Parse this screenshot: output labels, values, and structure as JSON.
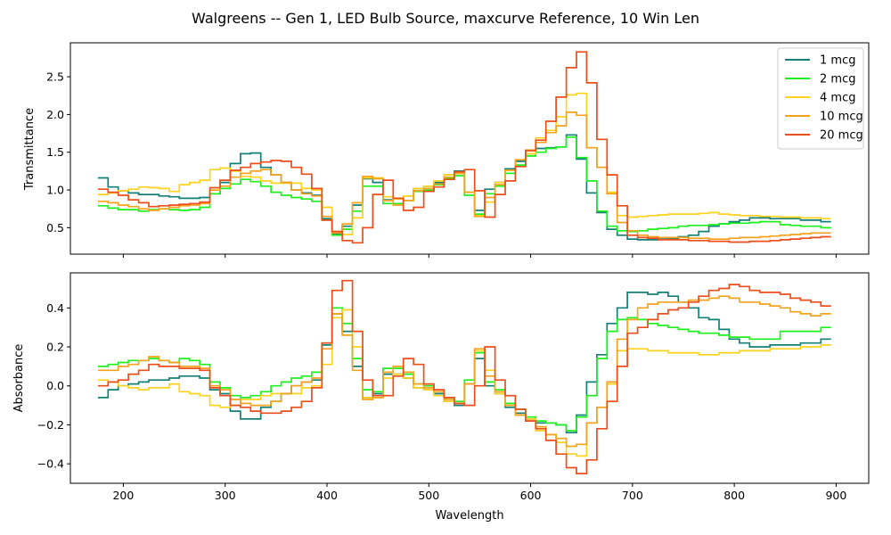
{
  "figure": {
    "title": "Walgreens -- Gen 1, LED Bulb Source, maxcurve Reference, 10 Win Len"
  },
  "chart_data": [
    {
      "type": "line",
      "step": true,
      "title": "",
      "xlabel": "",
      "ylabel": "Transmittance",
      "xlim": [
        148,
        932
      ],
      "ylim": [
        0.15,
        2.95
      ],
      "xticks": [
        200,
        300,
        400,
        500,
        600,
        700,
        800,
        900
      ],
      "xtick_labels_visible": false,
      "yticks": [
        0.5,
        1.0,
        1.5,
        2.0,
        2.5
      ],
      "ytick_labels": [
        "0.5",
        "1.0",
        "1.5",
        "2.0",
        "2.5"
      ],
      "grid": false,
      "legend": "top-right",
      "x": [
        180,
        190,
        200,
        210,
        220,
        230,
        240,
        250,
        260,
        270,
        280,
        290,
        300,
        310,
        320,
        330,
        340,
        350,
        360,
        370,
        380,
        390,
        400,
        410,
        420,
        430,
        440,
        450,
        460,
        470,
        480,
        490,
        500,
        510,
        520,
        530,
        540,
        550,
        560,
        570,
        580,
        590,
        600,
        610,
        620,
        630,
        640,
        650,
        660,
        670,
        680,
        690,
        700,
        710,
        720,
        730,
        740,
        750,
        760,
        770,
        780,
        790,
        800,
        810,
        820,
        830,
        840,
        850,
        860,
        870,
        880,
        890
      ],
      "series": [
        {
          "name": "1 mcg",
          "color": "#138078",
          "values": [
            1.16,
            1.04,
            0.99,
            0.96,
            0.94,
            0.94,
            0.92,
            0.91,
            0.89,
            0.89,
            0.9,
            0.95,
            1.1,
            1.35,
            1.48,
            1.49,
            1.3,
            1.2,
            1.1,
            1.0,
            0.96,
            0.93,
            0.62,
            0.42,
            0.52,
            0.8,
            1.15,
            1.1,
            0.87,
            0.88,
            0.92,
            1.02,
            1.05,
            1.1,
            1.2,
            1.25,
            0.97,
            0.73,
            1.01,
            1.1,
            1.28,
            1.38,
            1.48,
            1.55,
            1.56,
            1.57,
            1.73,
            1.41,
            0.96,
            0.7,
            0.48,
            0.4,
            0.35,
            0.34,
            0.34,
            0.35,
            0.36,
            0.38,
            0.4,
            0.45,
            0.52,
            0.55,
            0.58,
            0.6,
            0.63,
            0.63,
            0.62,
            0.62,
            0.62,
            0.6,
            0.6,
            0.58
          ]
        },
        {
          "name": "2 mcg",
          "color": "#1eef1e",
          "values": [
            0.79,
            0.76,
            0.74,
            0.74,
            0.72,
            0.74,
            0.75,
            0.74,
            0.73,
            0.74,
            0.77,
            0.95,
            1.02,
            1.08,
            1.14,
            1.11,
            1.05,
            0.97,
            0.93,
            0.9,
            0.88,
            0.85,
            0.6,
            0.4,
            0.48,
            0.72,
            1.05,
            1.05,
            0.82,
            0.82,
            0.86,
            0.98,
            1.0,
            1.07,
            1.15,
            1.19,
            0.93,
            0.68,
            0.95,
            1.05,
            1.22,
            1.33,
            1.45,
            1.5,
            1.55,
            1.57,
            1.7,
            1.43,
            1.12,
            0.72,
            0.52,
            0.46,
            0.45,
            0.46,
            0.48,
            0.49,
            0.5,
            0.52,
            0.53,
            0.53,
            0.54,
            0.55,
            0.56,
            0.56,
            0.57,
            0.58,
            0.58,
            0.54,
            0.53,
            0.52,
            0.52,
            0.5
          ]
        },
        {
          "name": "4 mcg",
          "color": "#ffd21e",
          "values": [
            0.94,
            0.96,
            0.99,
            1.01,
            1.04,
            1.03,
            1.02,
            0.98,
            1.07,
            1.1,
            1.13,
            1.27,
            1.29,
            1.25,
            1.18,
            1.17,
            1.12,
            1.09,
            1.09,
            1.09,
            1.02,
            1.0,
            0.77,
            0.45,
            0.41,
            0.63,
            1.16,
            1.16,
            0.91,
            0.88,
            0.92,
            1.02,
            1.05,
            1.12,
            1.2,
            1.22,
            0.97,
            0.66,
            0.84,
            1.1,
            1.26,
            1.4,
            1.48,
            1.69,
            1.79,
            1.97,
            2.26,
            2.28,
            1.56,
            1.3,
            0.97,
            0.66,
            0.64,
            0.65,
            0.66,
            0.67,
            0.68,
            0.68,
            0.68,
            0.69,
            0.7,
            0.68,
            0.67,
            0.66,
            0.66,
            0.65,
            0.65,
            0.64,
            0.64,
            0.63,
            0.63,
            0.62
          ]
        },
        {
          "name": "10 mcg",
          "color": "#f5a21e",
          "values": [
            0.85,
            0.83,
            0.8,
            0.78,
            0.75,
            0.73,
            0.75,
            0.77,
            0.79,
            0.8,
            0.82,
            1.0,
            1.05,
            1.17,
            1.22,
            1.25,
            1.27,
            1.2,
            1.1,
            1.0,
            0.95,
            0.92,
            0.65,
            0.43,
            0.55,
            0.83,
            1.18,
            1.15,
            0.86,
            0.8,
            0.86,
            0.99,
            1.02,
            1.08,
            1.17,
            1.22,
            0.97,
            0.65,
            0.9,
            1.07,
            1.26,
            1.4,
            1.53,
            1.63,
            1.76,
            1.85,
            2.03,
            1.99,
            1.56,
            1.3,
            0.95,
            0.57,
            0.46,
            0.4,
            0.38,
            0.37,
            0.37,
            0.37,
            0.36,
            0.36,
            0.35,
            0.35,
            0.36,
            0.37,
            0.37,
            0.38,
            0.39,
            0.4,
            0.41,
            0.42,
            0.43,
            0.43
          ]
        },
        {
          "name": "20 mcg",
          "color": "#ec4e1b",
          "values": [
            1.01,
            0.97,
            0.93,
            0.87,
            0.83,
            0.78,
            0.79,
            0.8,
            0.81,
            0.82,
            0.84,
            1.03,
            1.13,
            1.26,
            1.3,
            1.35,
            1.37,
            1.39,
            1.38,
            1.3,
            1.21,
            1.02,
            0.6,
            0.45,
            0.33,
            0.3,
            0.5,
            0.94,
            1.13,
            0.89,
            0.73,
            0.77,
            0.98,
            1.04,
            1.14,
            1.24,
            1.27,
            0.99,
            0.64,
            0.94,
            1.12,
            1.31,
            1.52,
            1.66,
            1.91,
            2.23,
            2.62,
            2.83,
            2.42,
            1.67,
            1.2,
            0.79,
            0.4,
            0.37,
            0.36,
            0.34,
            0.34,
            0.34,
            0.33,
            0.33,
            0.32,
            0.32,
            0.31,
            0.31,
            0.32,
            0.32,
            0.33,
            0.34,
            0.35,
            0.36,
            0.37,
            0.38
          ]
        }
      ]
    },
    {
      "type": "line",
      "step": true,
      "title": "",
      "xlabel": "Wavelength",
      "ylabel": "Absorbance",
      "xlim": [
        148,
        932
      ],
      "ylim": [
        -0.5,
        0.58
      ],
      "xticks": [
        200,
        300,
        400,
        500,
        600,
        700,
        800,
        900
      ],
      "xtick_labels": [
        "200",
        "300",
        "400",
        "500",
        "600",
        "700",
        "800",
        "900"
      ],
      "yticks": [
        -0.4,
        -0.2,
        0.0,
        0.2,
        0.4
      ],
      "ytick_labels": [
        "−0.4",
        "−0.2",
        "0.0",
        "0.2",
        "0.4"
      ],
      "grid": false,
      "legend": "none",
      "x": [
        180,
        190,
        200,
        210,
        220,
        230,
        240,
        250,
        260,
        270,
        280,
        290,
        300,
        310,
        320,
        330,
        340,
        350,
        360,
        370,
        380,
        390,
        400,
        410,
        420,
        430,
        440,
        450,
        460,
        470,
        480,
        490,
        500,
        510,
        520,
        530,
        540,
        550,
        560,
        570,
        580,
        590,
        600,
        610,
        620,
        630,
        640,
        650,
        660,
        670,
        680,
        690,
        700,
        710,
        720,
        730,
        740,
        750,
        760,
        770,
        780,
        790,
        800,
        810,
        820,
        830,
        840,
        850,
        860,
        870,
        880,
        890
      ],
      "series": [
        {
          "name": "1 mcg",
          "color": "#138078",
          "values": [
            -0.06,
            -0.02,
            0.0,
            0.01,
            0.02,
            0.03,
            0.03,
            0.04,
            0.05,
            0.05,
            0.04,
            -0.02,
            -0.04,
            -0.13,
            -0.17,
            -0.17,
            -0.11,
            -0.08,
            -0.04,
            0.0,
            0.02,
            0.03,
            0.21,
            0.37,
            0.28,
            0.1,
            -0.06,
            -0.04,
            0.06,
            0.06,
            0.04,
            -0.01,
            -0.02,
            -0.04,
            -0.08,
            -0.1,
            0.01,
            0.14,
            0.0,
            -0.04,
            -0.11,
            -0.14,
            -0.17,
            -0.19,
            -0.19,
            -0.2,
            -0.24,
            -0.15,
            0.02,
            0.16,
            0.32,
            0.4,
            0.48,
            0.48,
            0.47,
            0.48,
            0.46,
            0.43,
            0.4,
            0.35,
            0.34,
            0.29,
            0.24,
            0.22,
            0.2,
            0.2,
            0.21,
            0.21,
            0.21,
            0.22,
            0.22,
            0.24
          ]
        },
        {
          "name": "2 mcg",
          "color": "#1eef1e",
          "values": [
            0.1,
            0.11,
            0.12,
            0.13,
            0.13,
            0.14,
            0.13,
            0.12,
            0.14,
            0.13,
            0.11,
            0.02,
            -0.01,
            -0.05,
            -0.06,
            -0.05,
            -0.03,
            0.0,
            0.02,
            0.04,
            0.05,
            0.07,
            0.22,
            0.4,
            0.32,
            0.14,
            -0.02,
            -0.03,
            0.09,
            0.09,
            0.06,
            0.01,
            0.0,
            -0.03,
            -0.06,
            -0.08,
            0.03,
            0.17,
            0.02,
            -0.02,
            -0.09,
            -0.12,
            -0.16,
            -0.18,
            -0.19,
            -0.2,
            -0.23,
            -0.16,
            -0.05,
            0.14,
            0.28,
            0.34,
            0.35,
            0.34,
            0.32,
            0.31,
            0.3,
            0.29,
            0.28,
            0.27,
            0.27,
            0.26,
            0.25,
            0.25,
            0.24,
            0.24,
            0.24,
            0.28,
            0.28,
            0.28,
            0.28,
            0.3
          ]
        },
        {
          "name": "4 mcg",
          "color": "#ffd21e",
          "values": [
            0.03,
            0.02,
            0.0,
            -0.01,
            -0.02,
            -0.01,
            -0.01,
            0.01,
            -0.03,
            -0.04,
            -0.05,
            -0.1,
            -0.11,
            -0.1,
            -0.07,
            -0.07,
            -0.05,
            -0.04,
            -0.04,
            -0.04,
            -0.01,
            0.0,
            0.11,
            0.35,
            0.39,
            0.2,
            -0.06,
            -0.06,
            0.04,
            0.06,
            0.04,
            -0.01,
            -0.02,
            -0.05,
            -0.08,
            -0.09,
            0.01,
            0.18,
            0.08,
            -0.04,
            -0.1,
            -0.15,
            -0.17,
            -0.23,
            -0.25,
            -0.29,
            -0.35,
            -0.36,
            -0.19,
            -0.11,
            0.01,
            0.18,
            0.19,
            0.19,
            0.18,
            0.18,
            0.17,
            0.17,
            0.17,
            0.16,
            0.16,
            0.17,
            0.17,
            0.18,
            0.18,
            0.18,
            0.19,
            0.19,
            0.19,
            0.2,
            0.2,
            0.21
          ]
        },
        {
          "name": "10 mcg",
          "color": "#f5a21e",
          "values": [
            0.08,
            0.08,
            0.1,
            0.11,
            0.13,
            0.15,
            0.13,
            0.12,
            0.1,
            0.1,
            0.09,
            0.0,
            -0.02,
            -0.07,
            -0.09,
            -0.1,
            -0.1,
            -0.08,
            -0.04,
            0.0,
            0.02,
            0.04,
            0.19,
            0.37,
            0.26,
            0.08,
            -0.07,
            -0.06,
            0.07,
            0.1,
            0.07,
            0.01,
            -0.01,
            -0.03,
            -0.07,
            -0.09,
            0.01,
            0.19,
            0.05,
            -0.03,
            -0.1,
            -0.15,
            -0.18,
            -0.21,
            -0.25,
            -0.27,
            -0.31,
            -0.3,
            -0.19,
            -0.11,
            0.02,
            0.24,
            0.34,
            0.4,
            0.42,
            0.43,
            0.43,
            0.43,
            0.44,
            0.44,
            0.45,
            0.46,
            0.45,
            0.43,
            0.43,
            0.42,
            0.41,
            0.4,
            0.38,
            0.37,
            0.36,
            0.37
          ]
        },
        {
          "name": "20 mcg",
          "color": "#ec4e1b",
          "values": [
            0.0,
            0.02,
            0.03,
            0.06,
            0.08,
            0.11,
            0.1,
            0.1,
            0.09,
            0.09,
            0.08,
            -0.01,
            -0.05,
            -0.1,
            -0.11,
            -0.13,
            -0.14,
            -0.14,
            -0.13,
            -0.11,
            -0.08,
            -0.01,
            0.22,
            0.49,
            0.54,
            0.28,
            0.03,
            -0.05,
            -0.05,
            0.05,
            0.14,
            0.11,
            0.01,
            -0.02,
            -0.06,
            -0.09,
            -0.1,
            0.0,
            0.2,
            0.03,
            -0.05,
            -0.12,
            -0.18,
            -0.22,
            -0.28,
            -0.35,
            -0.42,
            -0.45,
            -0.38,
            -0.22,
            -0.08,
            0.1,
            0.27,
            0.3,
            0.34,
            0.37,
            0.39,
            0.4,
            0.43,
            0.46,
            0.49,
            0.5,
            0.52,
            0.51,
            0.49,
            0.48,
            0.48,
            0.47,
            0.45,
            0.44,
            0.43,
            0.41
          ]
        }
      ]
    }
  ]
}
